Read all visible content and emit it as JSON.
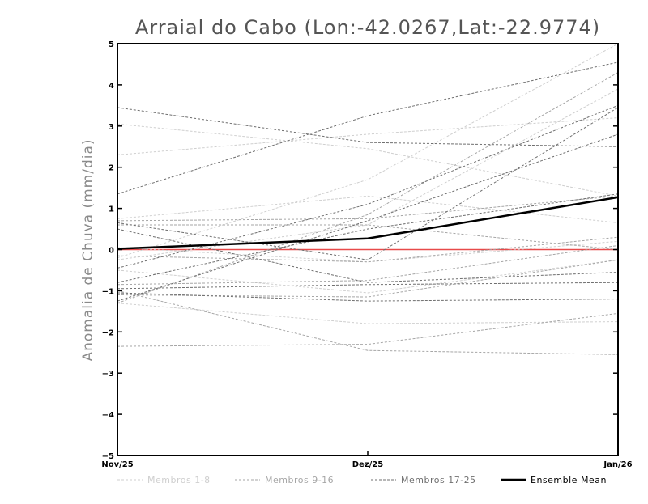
{
  "chart_data": {
    "type": "line",
    "title": "Arraial do Cabo (Lon:-42.0267,Lat:-22.9774)",
    "xlabel": "",
    "ylabel": "Anomalia de Chuva (mm/dia)",
    "categories": [
      "Nov/25",
      "Dez/25",
      "Jan/26"
    ],
    "ylim": [
      -5,
      5
    ],
    "yticks": [
      "5",
      "4",
      "3",
      "2",
      "1",
      "0",
      "−1",
      "−2",
      "−3",
      "−4",
      "−5"
    ],
    "ytick_values": [
      5,
      4,
      3,
      2,
      1,
      0,
      -1,
      -2,
      -3,
      -4,
      -5
    ],
    "grid": false,
    "legend_position": "bottom",
    "zero_line_color": "#e84a4a",
    "colors": {
      "group1": "#cfcfcf",
      "group2": "#a6a6a6",
      "group3": "#6f6f6f",
      "mean": "#000000"
    },
    "legend": [
      {
        "label": "Membros 1-8",
        "group": "group1"
      },
      {
        "label": "Membros 9-16",
        "group": "group2"
      },
      {
        "label": "Membros 17-25",
        "group": "group3"
      },
      {
        "label": "Ensemble Mean",
        "group": "mean"
      }
    ],
    "series": [
      {
        "group": "group1",
        "values": [
          3.05,
          2.45,
          1.3
        ]
      },
      {
        "group": "group1",
        "values": [
          2.3,
          2.8,
          3.2
        ]
      },
      {
        "group": "group1",
        "values": [
          0.75,
          1.3,
          0.65
        ]
      },
      {
        "group": "group1",
        "values": [
          -0.2,
          1.7,
          5.0
        ]
      },
      {
        "group": "group1",
        "values": [
          -0.5,
          -1.05,
          -0.25
        ]
      },
      {
        "group": "group1",
        "values": [
          -1.3,
          -1.8,
          -1.75
        ]
      },
      {
        "group": "group1",
        "values": [
          -0.25,
          0.6,
          3.9
        ]
      },
      {
        "group": "group1",
        "values": [
          0.05,
          -0.3,
          0.2
        ]
      },
      {
        "group": "group2",
        "values": [
          0.6,
          0.6,
          0.0
        ]
      },
      {
        "group": "group2",
        "values": [
          -0.85,
          -0.75,
          0.1
        ]
      },
      {
        "group": "group2",
        "values": [
          -1.1,
          -1.15,
          -0.25
        ]
      },
      {
        "group": "group2",
        "values": [
          -0.15,
          -0.3,
          0.3
        ]
      },
      {
        "group": "group2",
        "values": [
          -1.3,
          0.85,
          4.3
        ]
      },
      {
        "group": "group2",
        "values": [
          -2.35,
          -2.3,
          -1.55
        ]
      },
      {
        "group": "group2",
        "values": [
          -1.0,
          -2.45,
          -2.55
        ]
      },
      {
        "group": "group2",
        "values": [
          0.7,
          0.75,
          1.3
        ]
      },
      {
        "group": "group3",
        "values": [
          3.45,
          2.6,
          2.5
        ]
      },
      {
        "group": "group3",
        "values": [
          1.35,
          3.25,
          4.55
        ]
      },
      {
        "group": "group3",
        "values": [
          0.65,
          -0.25,
          3.45
        ]
      },
      {
        "group": "group3",
        "values": [
          -0.45,
          1.1,
          3.5
        ]
      },
      {
        "group": "group3",
        "values": [
          -0.8,
          0.5,
          1.35
        ]
      },
      {
        "group": "group3",
        "values": [
          0.5,
          -0.8,
          -0.55
        ]
      },
      {
        "group": "group3",
        "values": [
          -1.25,
          0.7,
          2.8
        ]
      },
      {
        "group": "group3",
        "values": [
          -0.95,
          -0.85,
          -0.8
        ]
      },
      {
        "group": "group3",
        "values": [
          -1.05,
          -1.25,
          -1.2
        ]
      },
      {
        "group": "mean",
        "name": "Ensemble Mean",
        "values": [
          0.02,
          0.27,
          1.27
        ]
      }
    ]
  }
}
